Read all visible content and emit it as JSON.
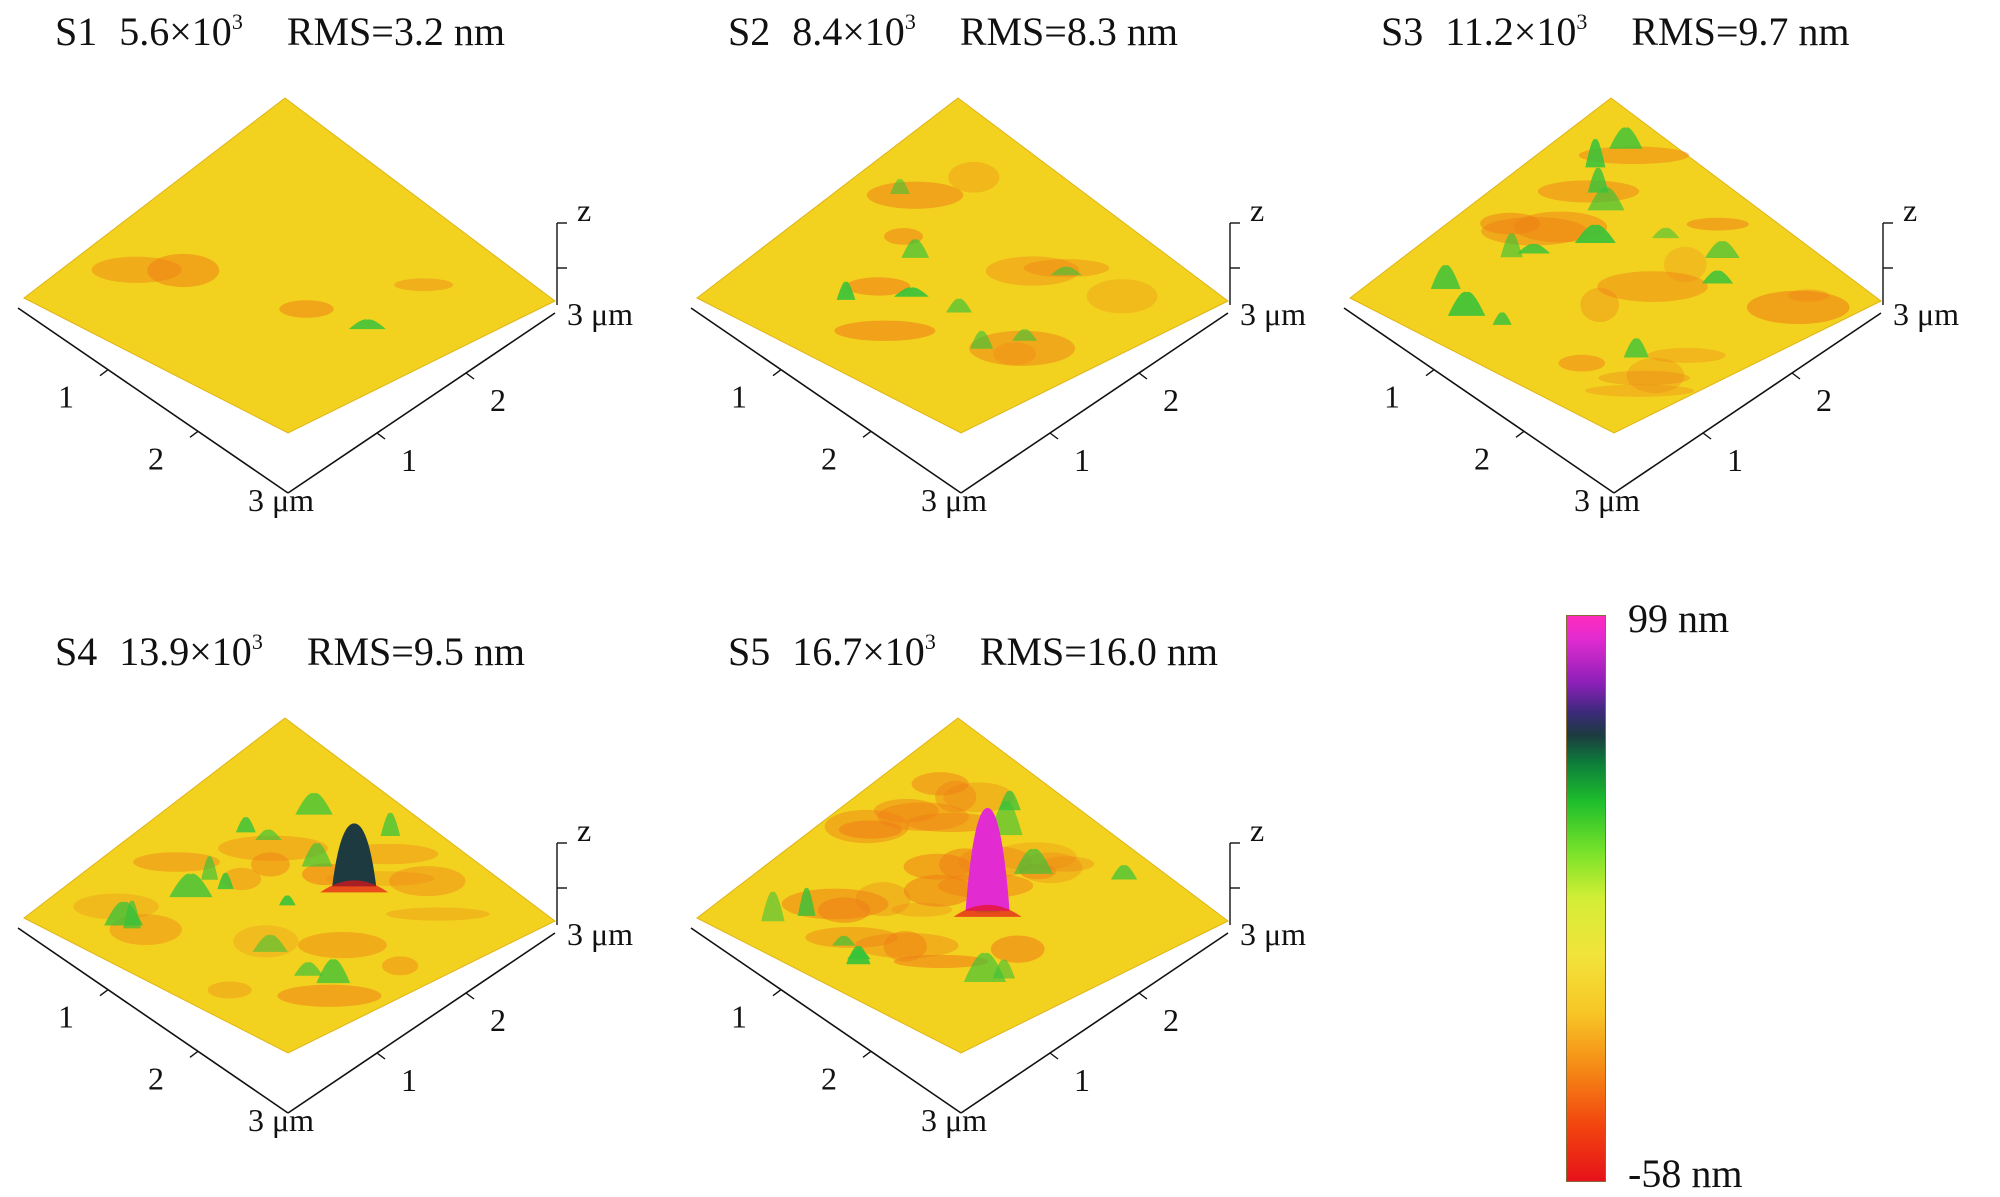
{
  "panels": [
    {
      "id": "S1",
      "value": "5.6×10",
      "exp": "3",
      "rms": "RMS=3.2 nm",
      "roughness": "flat"
    },
    {
      "id": "S2",
      "value": "8.4×10",
      "exp": "3",
      "rms": "RMS=8.3 nm",
      "roughness": "low"
    },
    {
      "id": "S3",
      "value": "11.2×10",
      "exp": "3",
      "rms": "RMS=9.7 nm",
      "roughness": "medium"
    },
    {
      "id": "S4",
      "value": "13.9×10",
      "exp": "3",
      "rms": "RMS=9.5 nm",
      "roughness": "medium"
    },
    {
      "id": "S5",
      "value": "16.7×10",
      "exp": "3",
      "rms": "RMS=16.0 nm",
      "roughness": "high"
    }
  ],
  "axes": {
    "z": "z",
    "right_tick_1": "1",
    "right_tick_2": "2",
    "right_end": "3 μm",
    "left_tick_1": "1",
    "left_tick_2": "2",
    "left_end": "3 μm"
  },
  "colorbar": {
    "max_label": "99 nm",
    "min_label": "-58 nm",
    "colors": [
      "#ff2bbd",
      "#8b20b8",
      "#1d3a40",
      "#1fbf2c",
      "#d3ee35",
      "#f2e43a",
      "#f58a16",
      "#e6121a"
    ]
  },
  "colors": {
    "surface_base": "#f2d21f",
    "surface_valley": "#ef7f16",
    "surface_peak": "#36c23a"
  }
}
